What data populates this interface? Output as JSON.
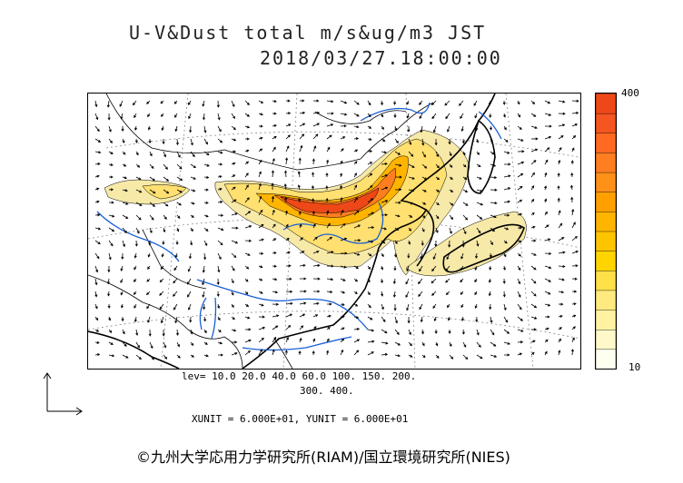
{
  "title": {
    "line1": "U-V&Dust total m/s&ug/m3 JST",
    "line2": "2018/03/27.18:00:00"
  },
  "colorbar": {
    "max_label": "400",
    "min_label": "10",
    "colors": [
      "#fffff0",
      "#fff8c8",
      "#fff2a0",
      "#ffea80",
      "#ffe048",
      "#ffd400",
      "#ffc400",
      "#ffb400",
      "#ffa000",
      "#ff9018",
      "#ff7e20",
      "#ff6a20",
      "#f55520",
      "#ee4818"
    ]
  },
  "levels": {
    "line1": "lev= 10.0 20.0 40.0 60.0 100. 150. 200.",
    "line2": "300. 400."
  },
  "units": {
    "text": "XUNIT = 6.000E+01, YUNIT = 6.000E+01"
  },
  "copyright": {
    "text": "©九州大学応用力学研究所(RIAM)/国立環境研究所(NIES)"
  },
  "colors": {
    "coastline": "#000000",
    "rivers": "#1a5fd6",
    "dust_low": "#f6e6a0",
    "dust_high": "#ee4a18"
  }
}
